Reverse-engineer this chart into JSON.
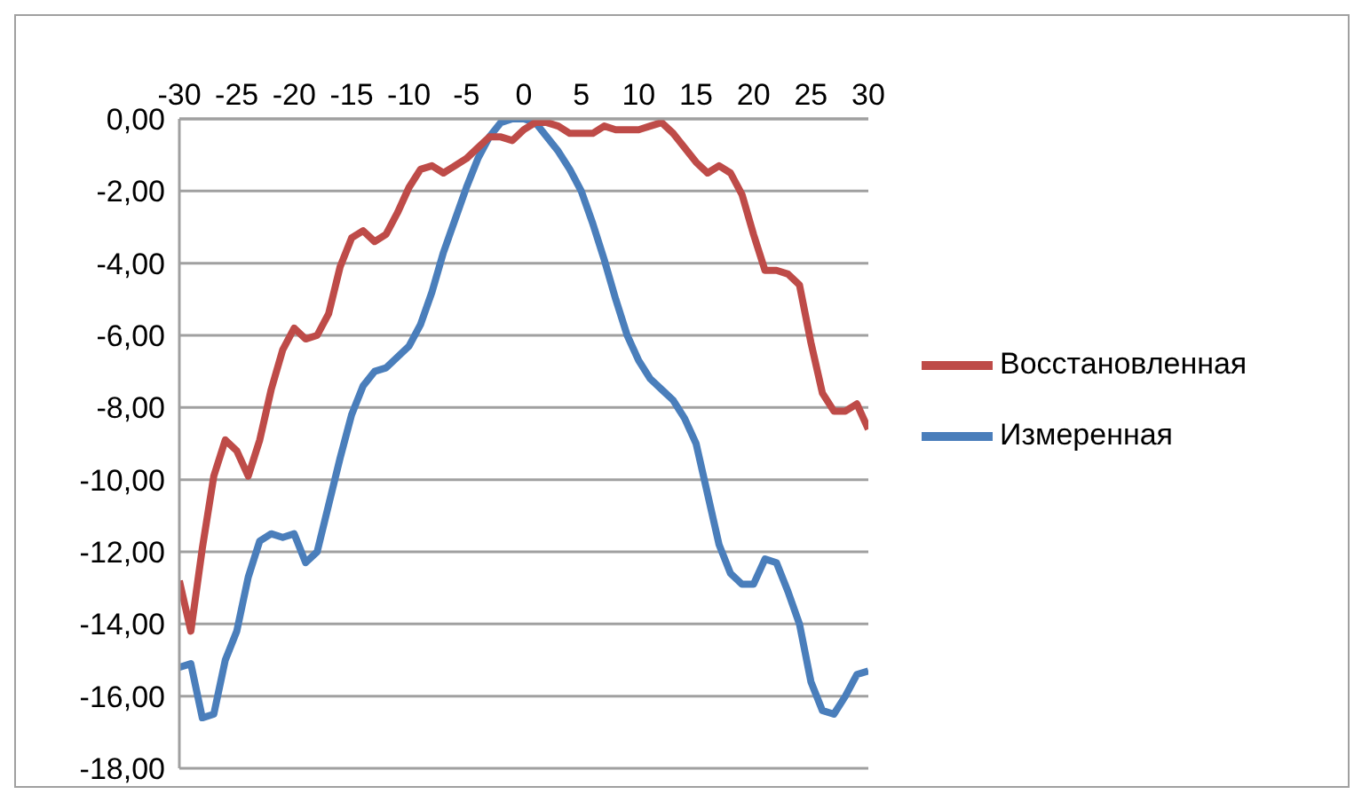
{
  "chart_data": {
    "type": "line",
    "x": [
      -30,
      -29,
      -28,
      -27,
      -26,
      -25,
      -24,
      -23,
      -22,
      -21,
      -20,
      -19,
      -18,
      -17,
      -16,
      -15,
      -14,
      -13,
      -12,
      -11,
      -10,
      -9,
      -8,
      -7,
      -6,
      -5,
      -4,
      -3,
      -2,
      -1,
      0,
      1,
      2,
      3,
      4,
      5,
      6,
      7,
      8,
      9,
      10,
      11,
      12,
      13,
      14,
      15,
      16,
      17,
      18,
      19,
      20,
      21,
      22,
      23,
      24,
      25,
      26,
      27,
      28,
      29,
      30
    ],
    "series": [
      {
        "name": "Измеренная",
        "color": "#4a7ebb",
        "values": [
          -15.2,
          -15.1,
          -16.6,
          -16.5,
          -15.0,
          -14.2,
          -12.7,
          -11.7,
          -11.5,
          -11.6,
          -11.5,
          -12.3,
          -12.0,
          -10.7,
          -9.4,
          -8.2,
          -7.4,
          -7.0,
          -6.9,
          -6.6,
          -6.3,
          -5.7,
          -4.8,
          -3.7,
          -2.8,
          -1.9,
          -1.1,
          -0.5,
          -0.1,
          0.0,
          0.0,
          -0.1,
          -0.5,
          -0.9,
          -1.4,
          -2.0,
          -2.9,
          -3.9,
          -5.0,
          -6.0,
          -6.7,
          -7.2,
          -7.5,
          -7.8,
          -8.3,
          -9.0,
          -10.4,
          -11.8,
          -12.6,
          -12.9,
          -12.9,
          -12.2,
          -12.3,
          -13.1,
          -14.0,
          -15.6,
          -16.4,
          -16.5,
          -16.0,
          -15.4,
          -15.3
        ]
      },
      {
        "name": "Восстановленная",
        "color": "#be4b48",
        "values": [
          -12.8,
          -14.2,
          -11.9,
          -9.9,
          -8.9,
          -9.2,
          -9.9,
          -8.9,
          -7.5,
          -6.4,
          -5.8,
          -6.1,
          -6.0,
          -5.4,
          -4.1,
          -3.3,
          -3.1,
          -3.4,
          -3.2,
          -2.6,
          -1.9,
          -1.4,
          -1.3,
          -1.5,
          -1.3,
          -1.1,
          -0.8,
          -0.5,
          -0.5,
          -0.6,
          -0.3,
          -0.1,
          -0.1,
          -0.2,
          -0.4,
          -0.4,
          -0.4,
          -0.2,
          -0.3,
          -0.3,
          -0.3,
          -0.2,
          -0.1,
          -0.4,
          -0.8,
          -1.2,
          -1.5,
          -1.3,
          -1.5,
          -2.1,
          -3.2,
          -4.2,
          -4.2,
          -4.3,
          -4.6,
          -6.2,
          -7.6,
          -8.1,
          -8.1,
          -7.9,
          -8.6
        ]
      }
    ],
    "xlim": [
      -30,
      30
    ],
    "xticks": [
      -30,
      -25,
      -20,
      -15,
      -10,
      -5,
      0,
      5,
      10,
      15,
      20,
      25,
      30
    ],
    "ylim": [
      -18,
      0
    ],
    "yticks": [
      {
        "value": 0,
        "label": "0,00"
      },
      {
        "value": -2,
        "label": "-2,00"
      },
      {
        "value": -4,
        "label": "-4,00"
      },
      {
        "value": -6,
        "label": "-6,00"
      },
      {
        "value": -8,
        "label": "-8,00"
      },
      {
        "value": -10,
        "label": "-10,00"
      },
      {
        "value": -12,
        "label": "-12,00"
      },
      {
        "value": -14,
        "label": "-14,00"
      },
      {
        "value": -16,
        "label": "-16,00"
      },
      {
        "value": -18,
        "label": "-18,00"
      }
    ],
    "grid": "y",
    "legend": "right",
    "marker": "none",
    "line_style": "solid"
  }
}
